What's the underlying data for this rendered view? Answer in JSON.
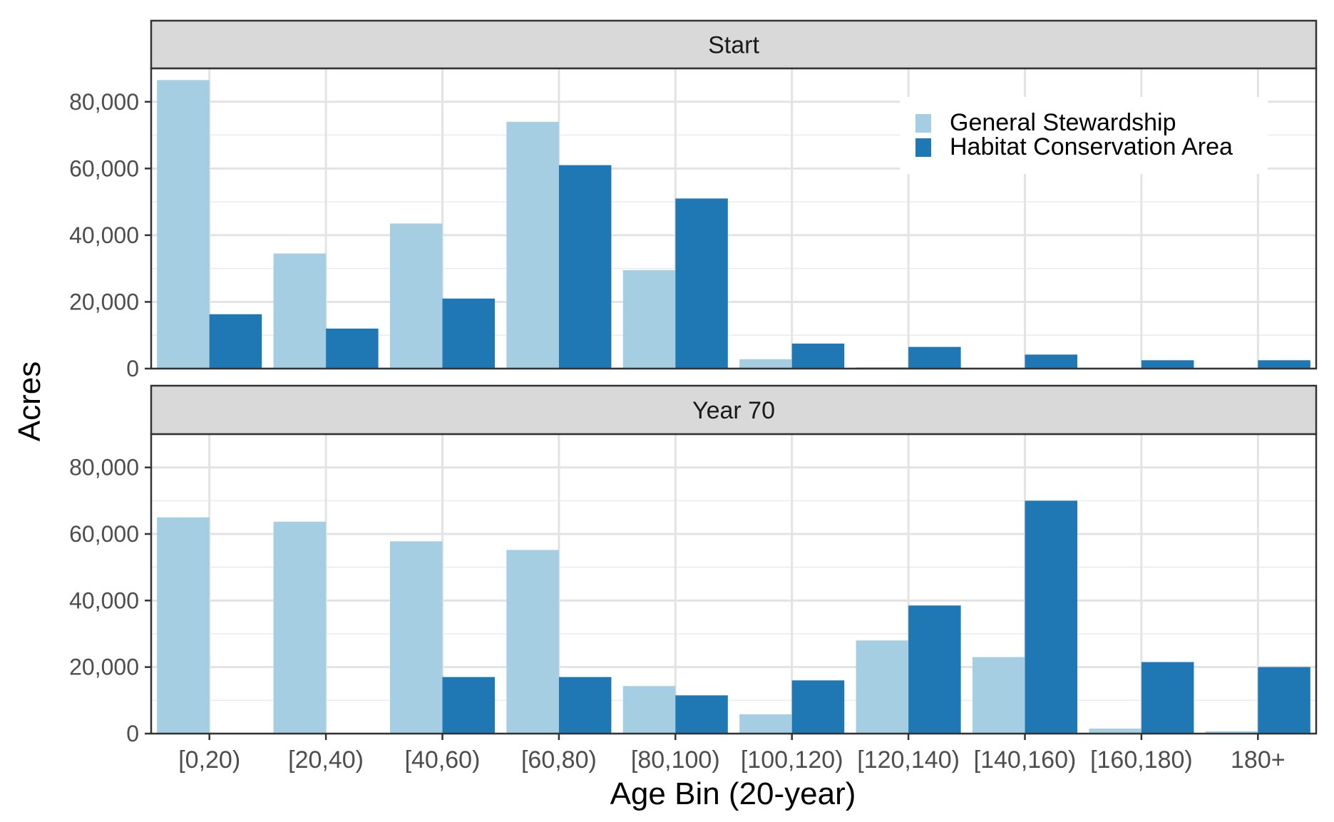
{
  "chart_data": {
    "type": "bar",
    "layout": "faceted-vertical",
    "xlabel": "Age Bin (20-year)",
    "ylabel": "Acres",
    "categories": [
      "[0,20)",
      "[20,40)",
      "[40,60)",
      "[60,80)",
      "[80,100)",
      "[100,120)",
      "[120,140)",
      "[140,160)",
      "[160,180)",
      "180+"
    ],
    "ylim": [
      0,
      90000
    ],
    "yticks": [
      0,
      20000,
      40000,
      60000,
      80000
    ],
    "ytick_labels": [
      "0",
      "20,000",
      "40,000",
      "60,000",
      "80,000"
    ],
    "grid": true,
    "legend": {
      "position": "top-right of first panel",
      "entries": [
        "General Stewardship",
        "Habitat Conservation Area"
      ]
    },
    "series_colors": {
      "General Stewardship": "#a6cee3",
      "Habitat Conservation Area": "#1f78b4"
    },
    "panels": [
      {
        "title": "Start",
        "series": [
          {
            "name": "General Stewardship",
            "values": [
              86500,
              34500,
              43500,
              74000,
              29500,
              2800,
              400,
              0,
              0,
              0
            ]
          },
          {
            "name": "Habitat Conservation Area",
            "values": [
              16300,
              12000,
              21000,
              61000,
              51000,
              7500,
              6500,
              4200,
              2500,
              2500
            ]
          }
        ]
      },
      {
        "title": "Year 70",
        "series": [
          {
            "name": "General Stewardship",
            "values": [
              65000,
              63700,
              57800,
              55200,
              14300,
              5800,
              28000,
              23000,
              1500,
              700
            ]
          },
          {
            "name": "Habitat Conservation Area",
            "values": [
              0,
              0,
              17000,
              17000,
              11500,
              16000,
              38500,
              70000,
              21500,
              20000
            ]
          }
        ]
      }
    ]
  }
}
